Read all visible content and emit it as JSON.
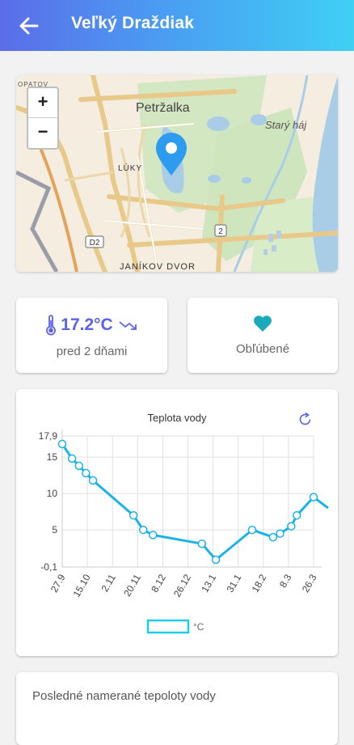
{
  "header": {
    "title": "Veľký Draždiak"
  },
  "map": {
    "labels": {
      "petrzalka": "Petržalka",
      "stary_haj": "Starý háj",
      "luky": "LÚKY",
      "janikov_dvor": "JANÍKOV DVOR",
      "d2": "D2",
      "road2": "2",
      "corner": "OPATOV"
    },
    "zoom_in": "+",
    "zoom_out": "−"
  },
  "temperature": {
    "value": "17.2°C",
    "time": "pred 2 dňami",
    "trend_icon": "trend-down-icon"
  },
  "favorite": {
    "label": "Obľúbené",
    "color": "#1aa9b8"
  },
  "chart_data": {
    "type": "line",
    "title": "Teplota vody",
    "x": [
      "27.9",
      "15.10",
      "2.11",
      "20.11",
      "8.12",
      "26.12",
      "13.1",
      "31.1",
      "18.2",
      "8.3",
      "26.3"
    ],
    "y_ticks": [
      "17,9",
      "15",
      "10",
      "5",
      "-0,1"
    ],
    "ylim": [
      -0.1,
      17.9
    ],
    "series": [
      {
        "name": "°C",
        "color": "#1ab3e8",
        "points": [
          {
            "x": "27.9",
            "y": 16.8
          },
          {
            "x": "4.10",
            "y": 14.8
          },
          {
            "x": "9.10",
            "y": 13.8
          },
          {
            "x": "14.10",
            "y": 12.8
          },
          {
            "x": "19.10",
            "y": 11.8
          },
          {
            "x": "17.11",
            "y": 7.0
          },
          {
            "x": "24.11",
            "y": 5.0
          },
          {
            "x": "1.12",
            "y": 4.3
          },
          {
            "x": "5.1",
            "y": 3.1
          },
          {
            "x": "15.1",
            "y": 0.9
          },
          {
            "x": "10.2",
            "y": 5.0
          },
          {
            "x": "25.2",
            "y": 4.0
          },
          {
            "x": "2.3",
            "y": 4.5
          },
          {
            "x": "10.3",
            "y": 5.5
          },
          {
            "x": "14.3",
            "y": 7.0
          },
          {
            "x": "26.3",
            "y": 9.5
          }
        ]
      }
    ],
    "grid": true,
    "legend": "bottom"
  },
  "refresh_icon": "refresh-icon",
  "last_measured": {
    "title": "Posledné namerané tepoloty vody"
  }
}
